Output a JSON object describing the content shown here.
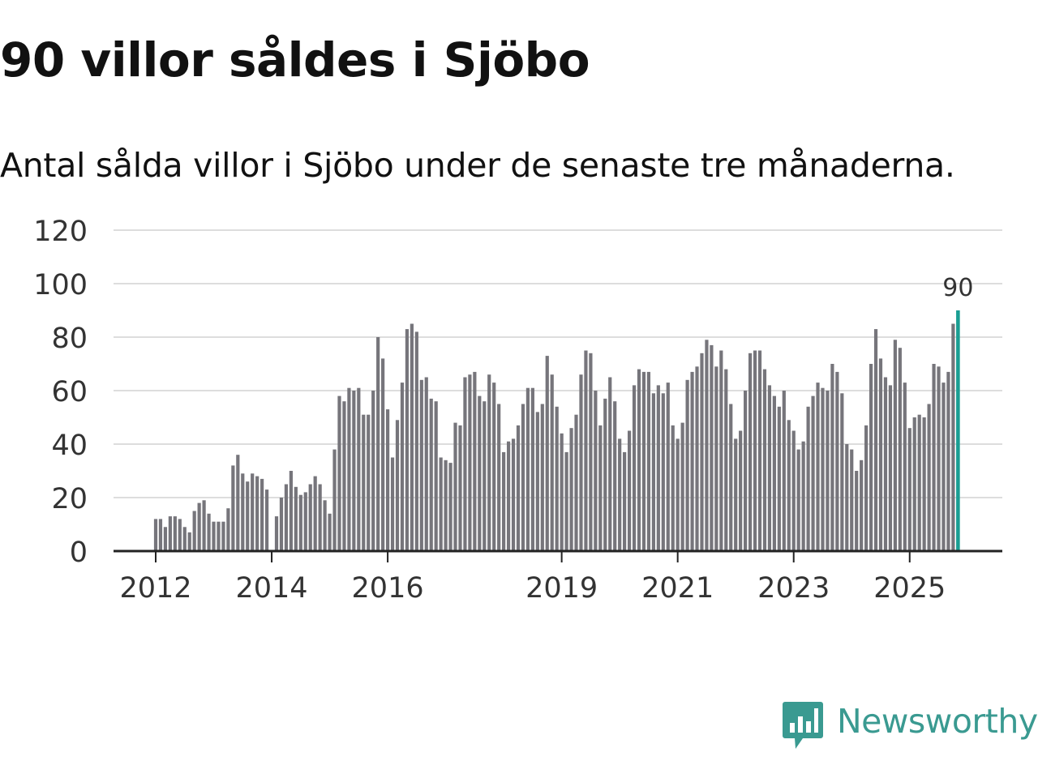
{
  "header": {
    "title": "90 villor såldes i Sjöbo",
    "subtitle": "Antal sålda villor i Sjöbo under de senaste tre månaderna."
  },
  "brand": {
    "name": "Newsworthy",
    "color": "#3a9a91",
    "icon": "newsworthy-logo-icon"
  },
  "colors": {
    "bar": "#76757b",
    "highlight": "#1a9e93",
    "grid": "#dddddd",
    "axis": "#222222"
  },
  "chart_data": {
    "type": "bar",
    "x_start": "2012-01",
    "interval": "month",
    "ylim": [
      0,
      120
    ],
    "yticks": [
      0,
      20,
      40,
      60,
      80,
      100,
      120
    ],
    "xticks": [
      "2012",
      "2014",
      "2016",
      "2019",
      "2021",
      "2023",
      "2025"
    ],
    "grid": true,
    "highlight": {
      "label": "90",
      "index": "last"
    },
    "values": [
      12,
      12,
      9,
      13,
      13,
      12,
      9,
      7,
      15,
      18,
      19,
      14,
      11,
      11,
      11,
      16,
      32,
      36,
      29,
      26,
      29,
      28,
      27,
      23,
      null,
      13,
      20,
      25,
      30,
      24,
      21,
      22,
      25,
      28,
      25,
      19,
      14,
      38,
      58,
      56,
      61,
      60,
      61,
      51,
      51,
      60,
      80,
      72,
      53,
      35,
      49,
      63,
      83,
      85,
      82,
      64,
      65,
      57,
      56,
      35,
      34,
      33,
      48,
      47,
      65,
      66,
      67,
      58,
      56,
      66,
      63,
      55,
      37,
      41,
      42,
      47,
      55,
      61,
      61,
      52,
      55,
      73,
      66,
      54,
      44,
      37,
      46,
      51,
      66,
      75,
      74,
      60,
      47,
      57,
      65,
      56,
      42,
      37,
      45,
      62,
      68,
      67,
      67,
      59,
      62,
      59,
      63,
      47,
      42,
      48,
      64,
      67,
      69,
      74,
      79,
      77,
      69,
      75,
      68,
      55,
      42,
      45,
      60,
      74,
      75,
      75,
      68,
      62,
      58,
      54,
      60,
      49,
      45,
      38,
      41,
      54,
      58,
      63,
      61,
      60,
      70,
      67,
      59,
      40,
      38,
      30,
      34,
      47,
      70,
      83,
      72,
      65,
      62,
      79,
      76,
      63,
      46,
      50,
      51,
      50,
      55,
      70,
      69,
      63,
      67,
      85,
      90
    ]
  }
}
